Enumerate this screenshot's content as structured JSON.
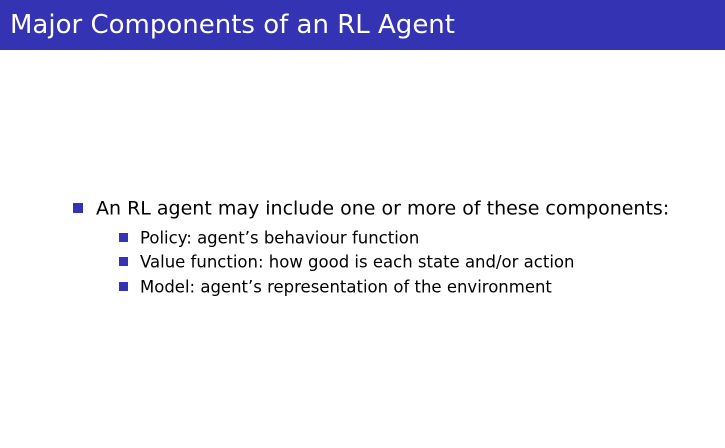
{
  "slide": {
    "title": "Major Components of an RL Agent",
    "accent_color": "#3333b3",
    "main_bullet": "An RL agent may include one or more of these components:",
    "sub_bullets": [
      "Policy: agent’s behaviour function",
      "Value function: how good is each state and/or action",
      "Model: agent’s representation of the environment"
    ]
  }
}
